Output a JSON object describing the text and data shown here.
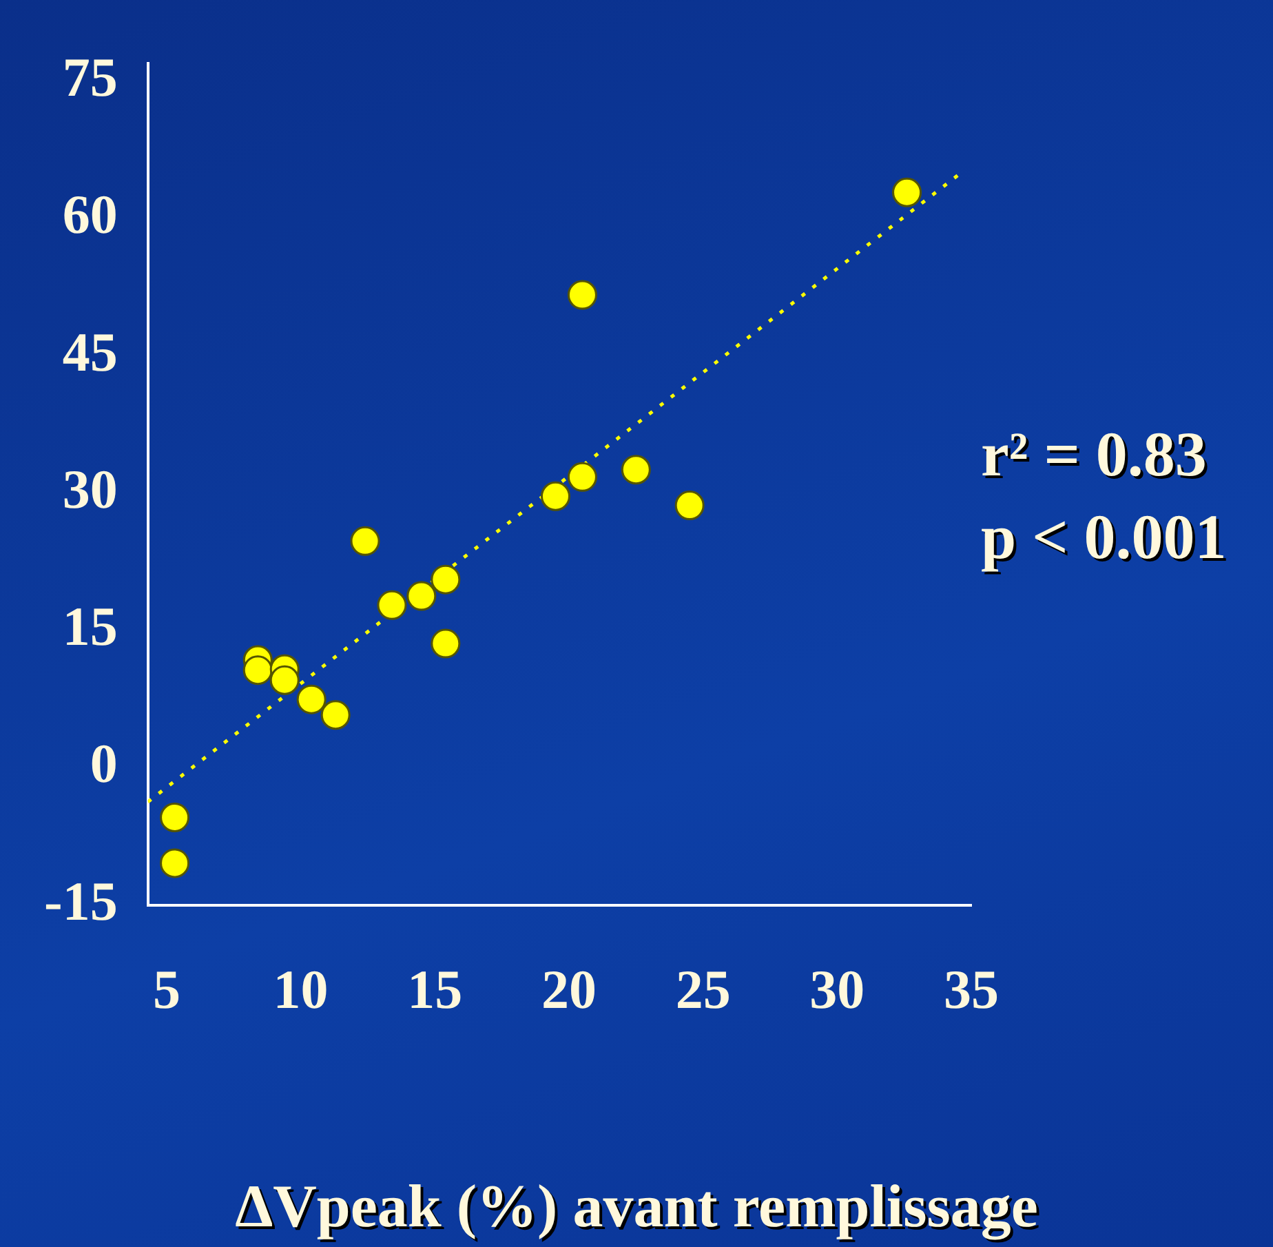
{
  "chart_data": {
    "type": "scatter",
    "xlabel": "ΔVpeak (%) avant remplissage",
    "xlim": [
      4.3,
      35
    ],
    "ylim": [
      -15,
      77
    ],
    "xticks": [
      5,
      10,
      15,
      20,
      25,
      30,
      35
    ],
    "yticks": [
      -15,
      0,
      15,
      30,
      45,
      60,
      75
    ],
    "annotations": [
      "r² = 0.83",
      "p < 0.001"
    ],
    "series": [
      {
        "marker": "circle",
        "color": "#ffff00",
        "x": [
          5.3,
          5.3,
          8.4,
          8.4,
          9.4,
          9.4,
          10.4,
          11.3,
          12.4,
          13.4,
          14.5,
          15.4,
          15.4,
          19.5,
          20.5,
          20.5,
          22.5,
          24.5,
          32.6
        ],
        "values": [
          -5.4,
          -10.4,
          11.8,
          10.7,
          10.8,
          9.6,
          7.5,
          5.8,
          24.8,
          17.8,
          18.8,
          20.6,
          13.6,
          29.7,
          31.8,
          51.7,
          32.6,
          28.7,
          62.9
        ]
      },
      {
        "type": "line",
        "color": "#ffff00",
        "line_style": "dotted",
        "marker": "none",
        "x": [
          4.3,
          34.6
        ],
        "values": [
          -3.7,
          65.0
        ]
      }
    ]
  }
}
